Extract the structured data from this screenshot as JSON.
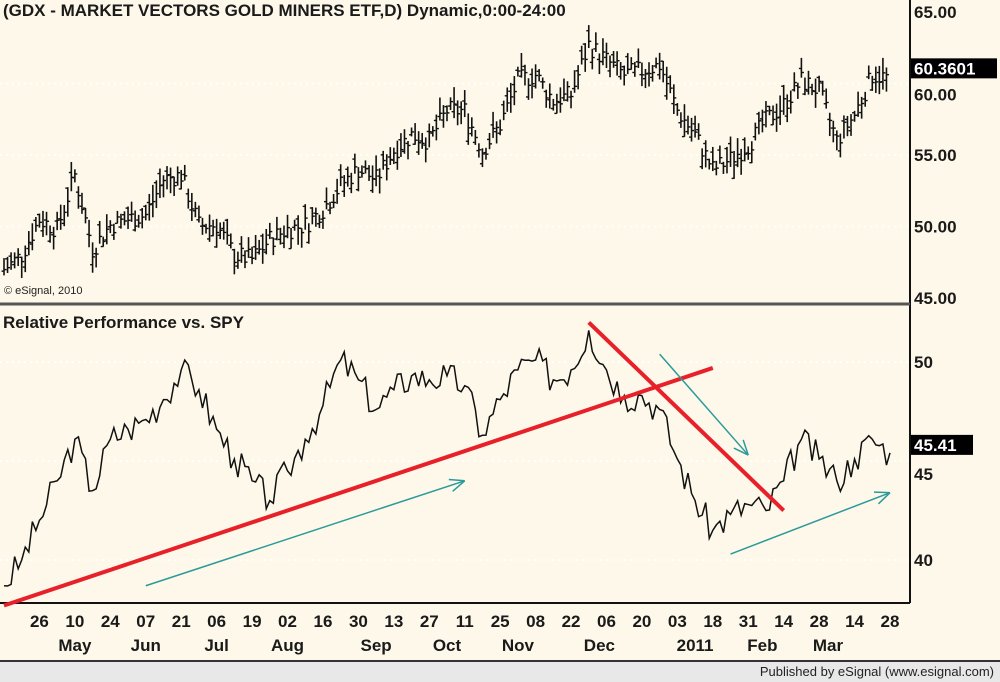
{
  "chart_data": [
    {
      "type": "ohlc",
      "title": "(GDX - MARKET VECTORS GOLD MINERS ETF,D) Dynamic,0:00-24:00",
      "watermark": "© eSignal, 2010",
      "ylim": [
        45,
        65
      ],
      "yticks": [
        "65.00",
        "60.00",
        "55.00",
        "50.00",
        "45.00"
      ],
      "last_value_label": "60.3601",
      "grid": true,
      "weeks": [
        "2010-04-12",
        "2010-04-19",
        "2010-04-26",
        "2010-05-03",
        "2010-05-10",
        "2010-05-17",
        "2010-05-24",
        "2010-05-31",
        "2010-06-07",
        "2010-06-14",
        "2010-06-21",
        "2010-06-28",
        "2010-07-05",
        "2010-07-12",
        "2010-07-19",
        "2010-07-26",
        "2010-08-02",
        "2010-08-09",
        "2010-08-16",
        "2010-08-23",
        "2010-08-30",
        "2010-09-06",
        "2010-09-13",
        "2010-09-20",
        "2010-09-27",
        "2010-10-04",
        "2010-10-11",
        "2010-10-18",
        "2010-10-25",
        "2010-11-01",
        "2010-11-08",
        "2010-11-15",
        "2010-11-22",
        "2010-11-29",
        "2010-12-06",
        "2010-12-13",
        "2010-12-20",
        "2010-12-27",
        "2011-01-03",
        "2011-01-10",
        "2011-01-17",
        "2011-01-24",
        "2011-01-31",
        "2011-02-07",
        "2011-02-14",
        "2011-02-21",
        "2011-02-28",
        "2011-03-07",
        "2011-03-14",
        "2011-03-21",
        "2011-03-28"
      ],
      "close": [
        47.0,
        48.0,
        50.5,
        49.8,
        53.6,
        48.4,
        50.1,
        50.5,
        50.8,
        53.3,
        53.6,
        50.1,
        50.1,
        48.0,
        47.7,
        49.1,
        49.8,
        50.1,
        51.2,
        52.9,
        54.0,
        53.3,
        55.3,
        56.4,
        56.0,
        58.1,
        58.1,
        55.3,
        57.1,
        60.2,
        60.6,
        58.8,
        59.2,
        62.7,
        61.6,
        60.6,
        60.9,
        61.3,
        58.1,
        56.4,
        54.0,
        54.7,
        55.7,
        57.4,
        58.5,
        60.2,
        59.5,
        56.0,
        57.8,
        60.6,
        60.36
      ]
    },
    {
      "type": "line",
      "title": "Relative Performance vs. SPY",
      "ylim": [
        38,
        52
      ],
      "yticks": [
        "50",
        "45",
        "40"
      ],
      "last_value_label": "45.41",
      "grid": true,
      "values": [
        38.7,
        40.0,
        42.0,
        44.0,
        46.1,
        43.5,
        46.1,
        46.6,
        47.1,
        48.1,
        49.6,
        48.6,
        46.6,
        45.1,
        44.0,
        43.0,
        44.5,
        46.1,
        47.8,
        50.1,
        49.1,
        47.6,
        48.6,
        49.3,
        49.1,
        49.3,
        48.8,
        46.3,
        48.1,
        49.6,
        50.1,
        49.1,
        49.6,
        51.6,
        49.6,
        48.3,
        48.3,
        47.6,
        45.1,
        43.0,
        41.5,
        42.3,
        42.8,
        42.5,
        44.0,
        46.1,
        45.1,
        44.0,
        45.1,
        46.1,
        45.41
      ],
      "annotations": [
        {
          "kind": "trendline",
          "color": "#e8202a",
          "from": [
            "2010-04-12",
            37.7
          ],
          "to": [
            "2011-01-17",
            49.7
          ]
        },
        {
          "kind": "trendline",
          "color": "#e8202a",
          "from": [
            "2010-11-29",
            52.0
          ],
          "to": [
            "2011-02-14",
            42.5
          ]
        },
        {
          "kind": "arrow",
          "color": "#2a9a9a",
          "from": [
            "2010-06-07",
            38.7
          ],
          "to": [
            "2010-10-11",
            44.0
          ]
        },
        {
          "kind": "arrow",
          "color": "#2a9a9a",
          "from": [
            "2010-12-27",
            50.4
          ],
          "to": [
            "2011-01-31",
            45.3
          ]
        },
        {
          "kind": "arrow",
          "color": "#2a9a9a",
          "from": [
            "2011-01-24",
            40.3
          ],
          "to": [
            "2011-03-28",
            43.4
          ]
        }
      ]
    }
  ],
  "x_axis": {
    "day_labels": [
      "26",
      "10",
      "24",
      "07",
      "21",
      "06",
      "19",
      "02",
      "16",
      "30",
      "13",
      "27",
      "11",
      "25",
      "08",
      "22",
      "06",
      "20",
      "03",
      "18",
      "31",
      "14",
      "28",
      "14",
      "28"
    ],
    "month_labels": [
      "May",
      "Jun",
      "Jul",
      "Aug",
      "Sep",
      "Oct",
      "Nov",
      "Dec",
      "2011",
      "Feb",
      "Mar"
    ]
  },
  "footer": "Published by eSignal (www.esignal.com)"
}
